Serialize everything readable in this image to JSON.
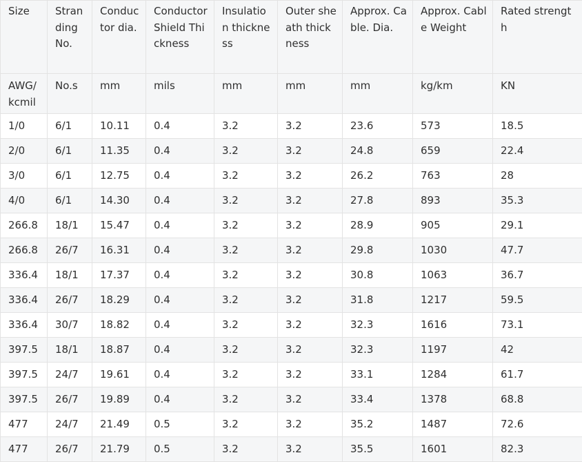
{
  "table": {
    "headers": [
      "Size",
      "Stranding No.",
      "Conductor dia.",
      "Conductor Shield Thickness",
      "Insulation thickness",
      "Outer sheath thickness",
      "Approx. Cable. Dia.",
      "Approx. Cable Weight",
      "Rated strength"
    ],
    "units": [
      "AWG/ kcmil",
      "No.s",
      "mm",
      "mils",
      "mm",
      "mm",
      "mm",
      "kg/km",
      "KN"
    ],
    "rows": [
      [
        "1/0",
        "6/1",
        "10.11",
        "0.4",
        "3.2",
        "3.2",
        "23.6",
        "573",
        "18.5"
      ],
      [
        "2/0",
        "6/1",
        "11.35",
        "0.4",
        "3.2",
        "3.2",
        "24.8",
        "659",
        "22.4"
      ],
      [
        "3/0",
        "6/1",
        "12.75",
        "0.4",
        "3.2",
        "3.2",
        "26.2",
        "763",
        "28"
      ],
      [
        "4/0",
        "6/1",
        "14.30",
        "0.4",
        "3.2",
        "3.2",
        "27.8",
        "893",
        "35.3"
      ],
      [
        "266.8",
        "18/1",
        "15.47",
        "0.4",
        "3.2",
        "3.2",
        "28.9",
        "905",
        "29.1"
      ],
      [
        "266.8",
        "26/7",
        "16.31",
        "0.4",
        "3.2",
        "3.2",
        "29.8",
        "1030",
        "47.7"
      ],
      [
        "336.4",
        "18/1",
        "17.37",
        "0.4",
        "3.2",
        "3.2",
        "30.8",
        "1063",
        "36.7"
      ],
      [
        "336.4",
        "26/7",
        "18.29",
        "0.4",
        "3.2",
        "3.2",
        "31.8",
        "1217",
        "59.5"
      ],
      [
        "336.4",
        "30/7",
        "18.82",
        "0.4",
        "3.2",
        "3.2",
        "32.3",
        "1616",
        "73.1"
      ],
      [
        "397.5",
        "18/1",
        "18.87",
        "0.4",
        "3.2",
        "3.2",
        "32.3",
        "1197",
        "42"
      ],
      [
        "397.5",
        "24/7",
        "19.61",
        "0.4",
        "3.2",
        "3.2",
        "33.1",
        "1284",
        "61.7"
      ],
      [
        "397.5",
        "26/7",
        "19.89",
        "0.4",
        "3.2",
        "3.2",
        "33.4",
        "1378",
        "68.8"
      ],
      [
        "477",
        "24/7",
        "21.49",
        "0.5",
        "3.2",
        "3.2",
        "35.2",
        "1487",
        "72.6"
      ],
      [
        "477",
        "26/7",
        "21.79",
        "0.5",
        "3.2",
        "3.2",
        "35.5",
        "1601",
        "82.3"
      ]
    ]
  }
}
